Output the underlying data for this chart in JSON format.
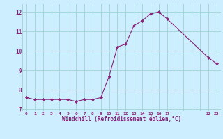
{
  "x": [
    0,
    1,
    2,
    3,
    4,
    5,
    6,
    7,
    8,
    9,
    10,
    11,
    12,
    13,
    14,
    15,
    16,
    17,
    22,
    23
  ],
  "y": [
    7.6,
    7.5,
    7.5,
    7.5,
    7.5,
    7.5,
    7.4,
    7.5,
    7.5,
    7.6,
    8.7,
    10.2,
    10.35,
    11.3,
    11.55,
    11.9,
    12.0,
    11.65,
    9.65,
    9.35
  ],
  "line_color": "#882277",
  "marker": "D",
  "marker_size": 2.0,
  "bg_color": "#cceeff",
  "grid_color": "#99cccc",
  "xlabel": "Windchill (Refroidissement éolien,°C)",
  "xlabel_color": "#882277",
  "tick_color": "#882277",
  "ylim": [
    6.9,
    12.4
  ],
  "xlim": [
    -0.5,
    23.5
  ],
  "yticks": [
    7,
    8,
    9,
    10,
    11,
    12
  ],
  "xtick_labels": [
    "0",
    "1",
    "2",
    "3",
    "4",
    "5",
    "6",
    "7",
    "8",
    "9",
    "10",
    "11",
    "12",
    "13",
    "14",
    "15",
    "16",
    "17",
    "",
    "",
    "",
    "",
    "22",
    "23"
  ],
  "xtick_positions": [
    0,
    1,
    2,
    3,
    4,
    5,
    6,
    7,
    8,
    9,
    10,
    11,
    12,
    13,
    14,
    15,
    16,
    17,
    18,
    19,
    20,
    21,
    22,
    23
  ]
}
